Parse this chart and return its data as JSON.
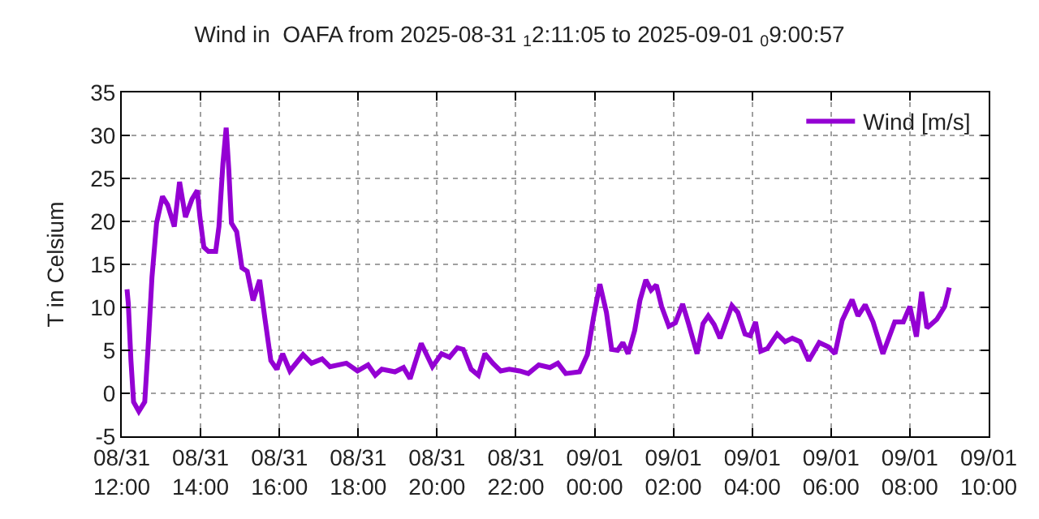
{
  "chart_data": {
    "type": "line",
    "title": "Wind in  OAFA from 2025-08-31 $_{1}$2:11:05 to 2025-09-01 $_{0}$9:00:57",
    "ylabel": "T in Celsium",
    "xlim": [
      "2025-08-31T12:00",
      "2025-09-01T10:00"
    ],
    "xticks": [
      {
        "value": "2025-08-31T12:00",
        "label": "08/31\n12:00"
      },
      {
        "value": "2025-08-31T14:00",
        "label": "08/31\n14:00"
      },
      {
        "value": "2025-08-31T16:00",
        "label": "08/31\n16:00"
      },
      {
        "value": "2025-08-31T18:00",
        "label": "08/31\n18:00"
      },
      {
        "value": "2025-08-31T20:00",
        "label": "08/31\n20:00"
      },
      {
        "value": "2025-08-31T22:00",
        "label": "08/31\n22:00"
      },
      {
        "value": "2025-09-01T00:00",
        "label": "09/01\n00:00"
      },
      {
        "value": "2025-09-01T02:00",
        "label": "09/01\n02:00"
      },
      {
        "value": "2025-09-01T04:00",
        "label": "09/01\n04:00"
      },
      {
        "value": "2025-09-01T06:00",
        "label": "09/01\n06:00"
      },
      {
        "value": "2025-09-01T08:00",
        "label": "09/01\n08:00"
      },
      {
        "value": "2025-09-01T10:00",
        "label": "09/01\n10:00"
      }
    ],
    "ylim": [
      -5,
      35
    ],
    "yticks": [
      -5,
      0,
      5,
      10,
      15,
      20,
      25,
      30,
      35
    ],
    "grid": true,
    "legend": "top right",
    "marker": "none",
    "line_style": "solid",
    "x": [
      "2025-08-31T12:08",
      "2025-08-31T12:10",
      "2025-08-31T12:14",
      "2025-08-31T12:18",
      "2025-08-31T12:26",
      "2025-08-31T12:35",
      "2025-08-31T12:40",
      "2025-08-31T12:46",
      "2025-08-31T12:53",
      "2025-08-31T13:02",
      "2025-08-31T13:10",
      "2025-08-31T13:20",
      "2025-08-31T13:28",
      "2025-08-31T13:37",
      "2025-08-31T13:47",
      "2025-08-31T13:55",
      "2025-08-31T13:59",
      "2025-08-31T14:05",
      "2025-08-31T14:12",
      "2025-08-31T14:23",
      "2025-08-31T14:28",
      "2025-08-31T14:34",
      "2025-08-31T14:39",
      "2025-08-31T14:43",
      "2025-08-31T14:47",
      "2025-08-31T14:55",
      "2025-08-31T15:03",
      "2025-08-31T15:11",
      "2025-08-31T15:20",
      "2025-08-31T15:30",
      "2025-08-31T15:38",
      "2025-08-31T15:47",
      "2025-08-31T15:56",
      "2025-08-31T16:05",
      "2025-08-31T16:16",
      "2025-08-31T16:36",
      "2025-08-31T16:49",
      "2025-08-31T17:05",
      "2025-08-31T17:17",
      "2025-08-31T17:42",
      "2025-08-31T17:59",
      "2025-08-31T18:15",
      "2025-08-31T18:26",
      "2025-08-31T18:36",
      "2025-08-31T18:56",
      "2025-08-31T19:09",
      "2025-08-31T19:19",
      "2025-08-31T19:36",
      "2025-08-31T19:53",
      "2025-08-31T20:07",
      "2025-08-31T20:19",
      "2025-08-31T20:31",
      "2025-08-31T20:40",
      "2025-08-31T20:52",
      "2025-08-31T21:03",
      "2025-08-31T21:13",
      "2025-08-31T21:25",
      "2025-08-31T21:37",
      "2025-08-31T21:50",
      "2025-08-31T22:06",
      "2025-08-31T22:19",
      "2025-08-31T22:35",
      "2025-08-31T22:52",
      "2025-08-31T23:04",
      "2025-08-31T23:16",
      "2025-08-31T23:37",
      "2025-08-31T23:49",
      "2025-08-31T23:58",
      "2025-09-01T00:08",
      "2025-09-01T00:18",
      "2025-09-01T00:26",
      "2025-09-01T00:35",
      "2025-09-01T00:43",
      "2025-09-01T00:51",
      "2025-09-01T01:01",
      "2025-09-01T01:09",
      "2025-09-01T01:18",
      "2025-09-01T01:26",
      "2025-09-01T01:34",
      "2025-09-01T01:42",
      "2025-09-01T01:53",
      "2025-09-01T02:03",
      "2025-09-01T02:14",
      "2025-09-01T02:23",
      "2025-09-01T02:36",
      "2025-09-01T02:45",
      "2025-09-01T02:53",
      "2025-09-01T03:02",
      "2025-09-01T03:11",
      "2025-09-01T03:29",
      "2025-09-01T03:38",
      "2025-09-01T03:49",
      "2025-09-01T03:57",
      "2025-09-01T04:05",
      "2025-09-01T04:13",
      "2025-09-01T04:23",
      "2025-09-01T04:38",
      "2025-09-01T04:50",
      "2025-09-01T05:01",
      "2025-09-01T05:13",
      "2025-09-01T05:26",
      "2025-09-01T05:42",
      "2025-09-01T05:56",
      "2025-09-01T06:06",
      "2025-09-01T06:17",
      "2025-09-01T06:32",
      "2025-09-01T06:41",
      "2025-09-01T06:52",
      "2025-09-01T07:04",
      "2025-09-01T07:19",
      "2025-09-01T07:37",
      "2025-09-01T07:50",
      "2025-09-01T08:00",
      "2025-09-01T08:10",
      "2025-09-01T08:18",
      "2025-09-01T08:26",
      "2025-09-01T08:41",
      "2025-09-01T08:53",
      "2025-09-01T09:00"
    ],
    "series": [
      {
        "name": "Wind [m/s]",
        "color": "#9400d3",
        "values": [
          12.1,
          10.4,
          3.8,
          -1.0,
          -2.1,
          -1.0,
          5.2,
          13.5,
          19.8,
          22.9,
          21.9,
          19.4,
          24.6,
          20.5,
          22.6,
          23.6,
          20.5,
          17.0,
          16.5,
          16.5,
          19.4,
          26.7,
          30.9,
          26.0,
          19.8,
          18.8,
          14.6,
          14.2,
          10.8,
          13.2,
          8.7,
          3.8,
          2.8,
          4.6,
          2.6,
          4.5,
          3.5,
          4.0,
          3.1,
          3.5,
          2.6,
          3.3,
          2.1,
          2.8,
          2.5,
          3.0,
          1.7,
          5.8,
          3.1,
          4.6,
          4.2,
          5.3,
          5.1,
          2.8,
          2.1,
          4.6,
          3.5,
          2.6,
          2.8,
          2.6,
          2.3,
          3.3,
          3.0,
          3.5,
          2.3,
          2.5,
          4.5,
          8.7,
          12.7,
          9.4,
          5.1,
          5.0,
          5.9,
          4.6,
          7.3,
          10.8,
          13.2,
          12.0,
          12.6,
          10.1,
          7.8,
          8.2,
          10.4,
          8.1,
          4.6,
          8.1,
          9.0,
          8.0,
          6.4,
          10.2,
          9.4,
          6.9,
          6.7,
          8.3,
          4.9,
          5.2,
          6.9,
          6.0,
          6.4,
          6.0,
          3.8,
          5.9,
          5.4,
          4.6,
          8.5,
          10.9,
          9.0,
          10.3,
          8.3,
          4.6,
          8.3,
          8.3,
          10.1,
          6.6,
          11.8,
          7.6,
          8.6,
          10.1,
          12.3
        ]
      }
    ]
  }
}
